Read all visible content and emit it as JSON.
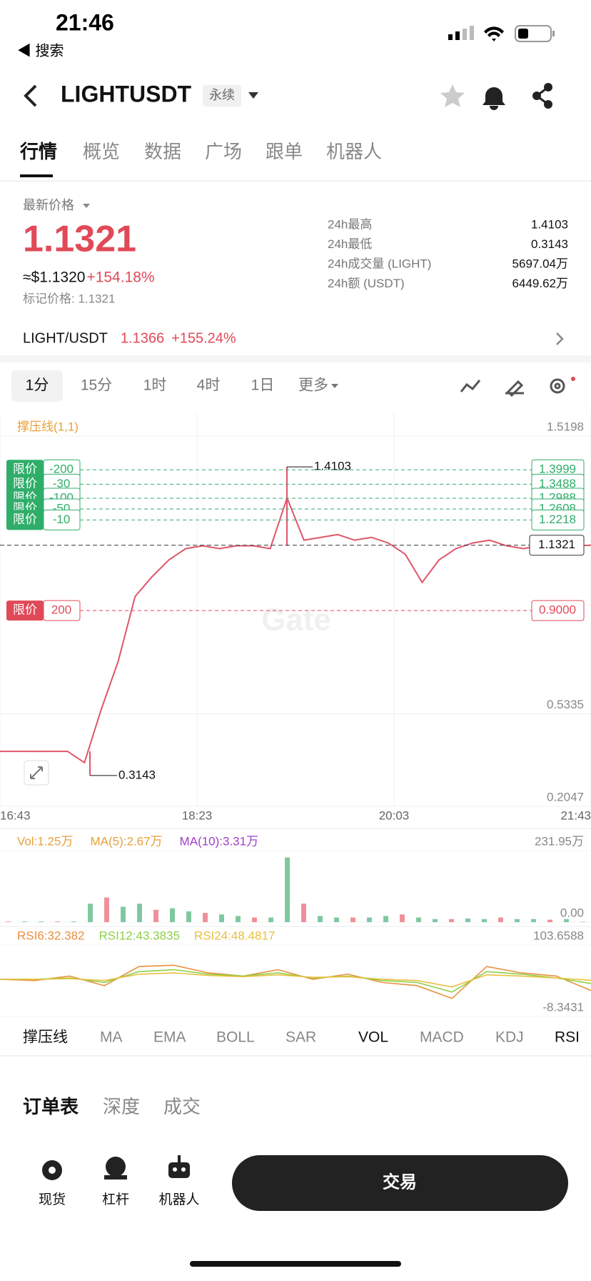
{
  "status": {
    "time": "21:46",
    "back": "◀ 搜索"
  },
  "header": {
    "symbol": "LIGHTUSDT",
    "tag": "永续"
  },
  "tabs": [
    "行情",
    "概览",
    "数据",
    "广场",
    "跟单",
    "机器人"
  ],
  "ticker": {
    "price_label": "最新价格",
    "price": "1.1321",
    "usd": "≈$1.1320",
    "change": "+154.18%",
    "mark_price": "标记价格: 1.1321",
    "stats": [
      {
        "label": "24h最高",
        "value": "1.4103"
      },
      {
        "label": "24h最低",
        "value": "0.3143"
      },
      {
        "label": "24h成交量 (LIGHT)",
        "value": "5697.04万"
      },
      {
        "label": "24h额 (USDT)",
        "value": "6449.62万"
      }
    ]
  },
  "spot": {
    "pair": "LIGHT/USDT",
    "price": "1.1366",
    "change": "+155.24%"
  },
  "intervals": [
    "1分",
    "15分",
    "1时",
    "4时",
    "1日",
    "更多"
  ],
  "price_chart": {
    "type": "line",
    "indicator": "撑压线(1,1)",
    "watermark": "Gate",
    "color": "#e0556a",
    "ylim": [
      0.2047,
      1.5198
    ],
    "yticks": [
      1.5198,
      0.5335,
      0.2047
    ],
    "x": [
      "16:43",
      "18:23",
      "20:03",
      "21:43"
    ],
    "closes": [
      0.4,
      0.4,
      0.4,
      0.4,
      0.4,
      0.36,
      0.55,
      0.72,
      0.95,
      1.02,
      1.08,
      1.12,
      1.13,
      1.12,
      1.13,
      1.13,
      1.12,
      1.3,
      1.15,
      1.16,
      1.17,
      1.15,
      1.16,
      1.14,
      1.1,
      1.0,
      1.08,
      1.12,
      1.14,
      1.15,
      1.13,
      1.12,
      1.13,
      1.13,
      1.13,
      1.1321
    ],
    "high": 1.4103,
    "low": 0.3143,
    "current": 1.1321,
    "orders": [
      {
        "label": "限价",
        "qty": -200,
        "price": 1.3999
      },
      {
        "label": "限价",
        "qty": -30,
        "price": 1.3488
      },
      {
        "label": "限价",
        "qty": -100,
        "price": 1.2988
      },
      {
        "label": "限价",
        "qty": -50,
        "price": 1.2608
      },
      {
        "label": "限价",
        "qty": -10,
        "price": 1.2218
      },
      {
        "label": "限价",
        "qty": 200,
        "price": {
          "value": 0.9,
          "label": "0.9000"
        }
      }
    ]
  },
  "volume_chart": {
    "type": "bar",
    "legend": [
      "Vol:1.25万",
      "MA(5):2.67万",
      "MA(10):3.31万"
    ],
    "legend_colors": [
      "#e8a03c",
      "#e8a03c",
      "#a040c8"
    ],
    "color": "#7fc7a0",
    "ylim": [
      0,
      231.95
    ],
    "yticks": [
      {
        "value": 231.95,
        "label": "231.95万"
      },
      {
        "value": 0,
        "label": "0.00"
      }
    ],
    "values": [
      2,
      2,
      2,
      2,
      2,
      60,
      80,
      50,
      60,
      40,
      45,
      35,
      30,
      25,
      20,
      15,
      15,
      210,
      60,
      20,
      15,
      15,
      15,
      20,
      25,
      15,
      10,
      10,
      12,
      10,
      15,
      10,
      10,
      8,
      10,
      1.25
    ]
  },
  "rsi_chart": {
    "type": "line",
    "ylim": [
      -8.3431,
      103.6588
    ],
    "yticks": [
      103.6588,
      -8.3431
    ],
    "series": [
      {
        "name": "RSI6:32.382",
        "color": "#e8903c",
        "values": [
          50,
          48,
          55,
          40,
          70,
          72,
          60,
          55,
          65,
          50,
          58,
          45,
          40,
          20,
          70,
          60,
          55,
          32.382
        ]
      },
      {
        "name": "RSI12:43.3835",
        "color": "#8ed04a",
        "values": [
          50,
          50,
          52,
          45,
          62,
          65,
          58,
          55,
          60,
          52,
          55,
          48,
          45,
          30,
          62,
          58,
          52,
          43.3835
        ]
      },
      {
        "name": "RSI24:48.4817",
        "color": "#e8c040",
        "values": [
          50,
          50,
          51,
          48,
          58,
          60,
          56,
          54,
          57,
          53,
          54,
          50,
          48,
          38,
          57,
          55,
          52,
          48.4817
        ]
      }
    ]
  },
  "indicators": {
    "main": [
      "撑压线",
      "MA",
      "EMA",
      "BOLL",
      "SAR"
    ],
    "sub": [
      "VOL",
      "MACD",
      "KDJ",
      "RSI"
    ]
  },
  "orderbook_tabs": [
    "订单表",
    "深度",
    "成交"
  ],
  "bottom": {
    "items": [
      "现货",
      "杠杆",
      "机器人"
    ],
    "trade": "交易"
  }
}
